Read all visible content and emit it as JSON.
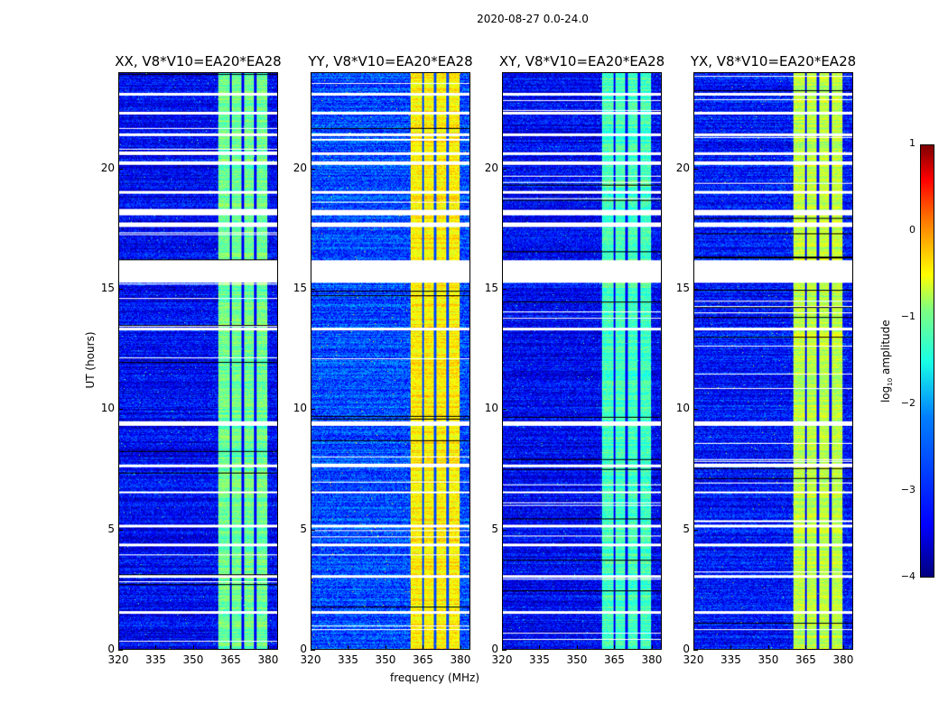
{
  "suptitle": "2020-08-27 0.0-24.0",
  "chart_data": {
    "type": "heatmap",
    "title": "2020-08-27 0.0-24.0",
    "xlabel": "frequency (MHz)",
    "ylabel": "UT (hours)",
    "xlim": [
      320,
      384
    ],
    "ylim": [
      0,
      24
    ],
    "xticks": [
      "320",
      "335",
      "350",
      "365",
      "380"
    ],
    "xtick_values": [
      320,
      335,
      350,
      365,
      380
    ],
    "yticks": [
      "0",
      "5",
      "10",
      "15",
      "20"
    ],
    "ytick_values": [
      0,
      5,
      10,
      15,
      20
    ],
    "colorbar": {
      "label": "log10 amplitude",
      "label_main": "log",
      "label_sub": "10",
      "label_tail": " amplitude",
      "clim": [
        -4,
        1
      ],
      "ticks": [
        "−4",
        "−3",
        "−2",
        "−1",
        "0",
        "1"
      ],
      "tick_values": [
        -4,
        -3,
        -2,
        -1,
        0,
        1
      ],
      "colormap": "jet"
    },
    "rfi_band_mhz": [
      360,
      380
    ],
    "band_gaps_mhz": [
      365,
      370,
      375
    ],
    "flagged_hours": [
      [
        15.3,
        16.2
      ],
      [
        9.3,
        9.5
      ],
      [
        17.6,
        17.8
      ],
      [
        18.1,
        18.3
      ],
      [
        19.0,
        19.1
      ],
      [
        20.2,
        20.35
      ],
      [
        20.6,
        20.7
      ],
      [
        21.4,
        21.5
      ],
      [
        23.1,
        23.2
      ],
      [
        22.3,
        22.4
      ],
      [
        13.3,
        13.4
      ],
      [
        5.1,
        5.2
      ],
      [
        4.3,
        4.4
      ],
      [
        3.0,
        3.1
      ],
      [
        1.5,
        1.6
      ],
      [
        7.6,
        7.7
      ],
      [
        6.5,
        6.6
      ]
    ],
    "panels": [
      {
        "title": "XX, V8*V10=EA20*EA28",
        "background_log_amp": -3.4,
        "band_log_amp": -1.6
      },
      {
        "title": "YY, V8*V10=EA20*EA28",
        "background_log_amp": -3.0,
        "band_log_amp": -0.8
      },
      {
        "title": "XY, V8*V10=EA20*EA28",
        "background_log_amp": -3.4,
        "band_log_amp": -1.8
      },
      {
        "title": "YX, V8*V10=EA20*EA28",
        "background_log_amp": -3.3,
        "band_log_amp": -1.2
      }
    ]
  }
}
